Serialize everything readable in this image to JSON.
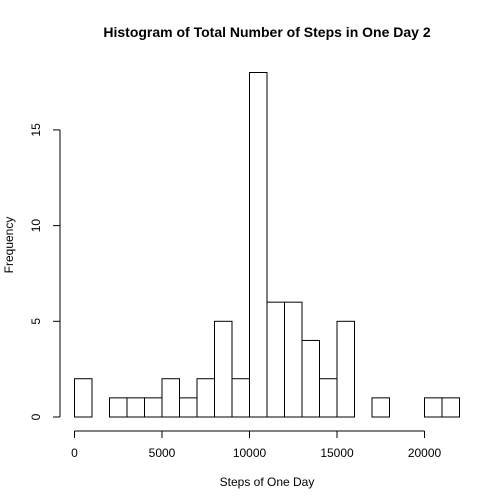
{
  "chart_data": {
    "type": "bar",
    "title": "Histogram of Total Number of Steps in One Day 2",
    "xlabel": "Steps of One Day",
    "ylabel": "Frequency",
    "bin_width": 1000,
    "bins_start": [
      0,
      1000,
      2000,
      3000,
      4000,
      5000,
      6000,
      7000,
      8000,
      9000,
      10000,
      11000,
      12000,
      13000,
      14000,
      15000,
      16000,
      17000,
      18000,
      19000,
      20000,
      21000
    ],
    "values": [
      2,
      0,
      1,
      1,
      1,
      2,
      1,
      2,
      5,
      2,
      18,
      6,
      6,
      4,
      2,
      5,
      0,
      1,
      0,
      0,
      1,
      1
    ],
    "xlim": [
      0,
      22000
    ],
    "ylim": [
      0,
      18
    ],
    "x_ticks": [
      0,
      5000,
      10000,
      15000,
      20000
    ],
    "y_ticks": [
      0,
      5,
      10,
      15
    ],
    "bar_fill": "#ffffff",
    "bar_stroke": "#000000"
  }
}
